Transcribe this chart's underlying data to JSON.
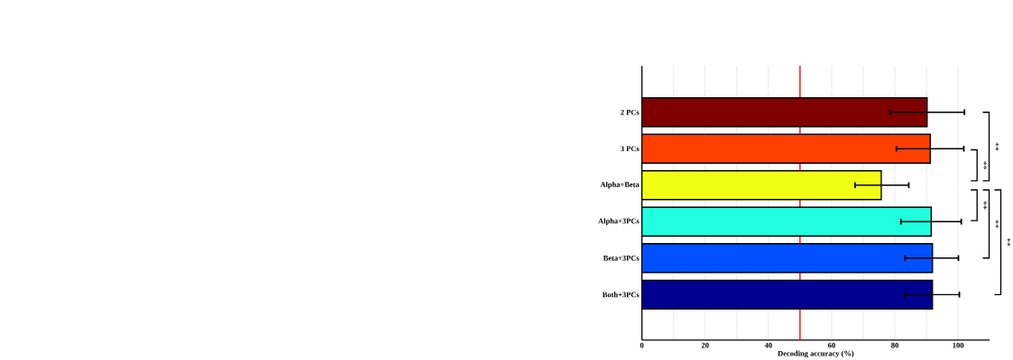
{
  "chart_data": {
    "type": "bar",
    "orientation": "horizontal",
    "xlabel": "Decoding accuracy (%)",
    "categories": [
      "2 PCs",
      "3 PCs",
      "Alpha+Beta",
      "Alpha+3PCs",
      "Beta+3PCs",
      "Both+3PCs"
    ],
    "values": [
      90.2,
      91.2,
      75.7,
      91.5,
      91.9,
      91.9
    ],
    "errors": [
      [
        78.4,
        102
      ],
      [
        80.5,
        101.8
      ],
      [
        67.4,
        84.4
      ],
      [
        81.9,
        101
      ],
      [
        83.2,
        100.1
      ],
      [
        83.1,
        100.4
      ]
    ],
    "colors": [
      "#800000",
      "#ff4000",
      "#f0ff14",
      "#20ffe0",
      "#0050ff",
      "#00008f"
    ],
    "xlim": [
      0,
      110
    ],
    "xticks": [
      0,
      {
        "value": 10,
        "label": null
      },
      20,
      {
        "value": 30,
        "label": null
      },
      40,
      {
        "value": 50,
        "label": null
      },
      60,
      {
        "value": 70,
        "label": null
      },
      80,
      {
        "value": 90,
        "label": null
      },
      100
    ],
    "grid": "x",
    "ref_lines": [
      {
        "axis": "x",
        "value": 50,
        "label": null,
        "color": "#ff0000"
      }
    ],
    "annotations": [
      "**",
      "**",
      "**",
      "**",
      "**"
    ]
  }
}
